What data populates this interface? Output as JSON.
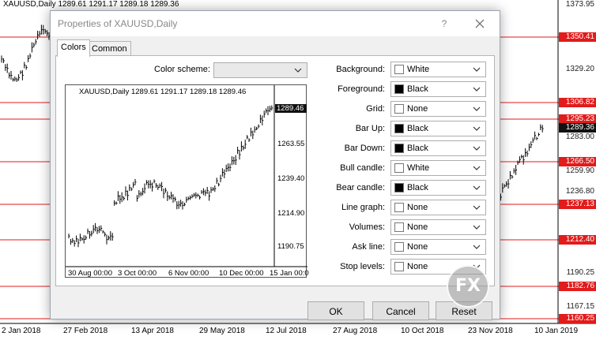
{
  "chart": {
    "title": "XAUUSD,Daily  1289.61 1291.17 1289.18 1289.36",
    "price_labels": [
      {
        "text": "1373.95",
        "style": "plain"
      },
      {
        "text": "1350.41",
        "style": "red"
      },
      {
        "text": "1329.20",
        "style": "plain"
      },
      {
        "text": "1306.82",
        "style": "red"
      },
      {
        "text": "1295.23",
        "style": "red"
      },
      {
        "text": "1289.36",
        "style": "dark"
      },
      {
        "text": "1283.00",
        "style": "plain"
      },
      {
        "text": "1266.50",
        "style": "red"
      },
      {
        "text": "1259.90",
        "style": "plain"
      },
      {
        "text": "1237.13",
        "style": "red"
      },
      {
        "text": "1236.80",
        "style": "plain"
      },
      {
        "text": "1212.40",
        "style": "red"
      },
      {
        "text": "1190.25",
        "style": "plain"
      },
      {
        "text": "1182.76",
        "style": "red"
      },
      {
        "text": "1167.15",
        "style": "plain"
      },
      {
        "text": "1160.25",
        "style": "red"
      }
    ],
    "dates": [
      "2 Jan 2018",
      "27 Feb 2018",
      "13 Apr 2018",
      "29 May 2018",
      "12 Jul 2018",
      "27 Aug 2018",
      "10 Oct 2018",
      "23 Nov 2018",
      "10 Jan 2019"
    ],
    "colors": {
      "level_line": "#e21b1b",
      "price_tag_bg": "#e21b1b",
      "bars": "#000000"
    }
  },
  "dialog": {
    "title": "Properties of XAUUSD,Daily",
    "help_label": "?",
    "close_icon": "close-icon",
    "tabs": [
      {
        "label": "Colors",
        "active": true
      },
      {
        "label": "Common",
        "active": false
      }
    ],
    "color_scheme": {
      "label": "Color scheme:",
      "value": ""
    },
    "preview": {
      "title": "XAUUSD,Daily  1289.61 1291.17 1289.18 1289.46",
      "last_price": "1289.46",
      "price_ticks": [
        "1263.55",
        "1239.40",
        "1214.90",
        "1190.75"
      ],
      "dates": [
        "30 Aug 00:00",
        "3 Oct 00:00",
        "6 Nov 00:00",
        "10 Dec 00:00",
        "15 Jan 00:0"
      ]
    },
    "settings": [
      {
        "label": "Background:",
        "value": "White",
        "color": "#ffffff"
      },
      {
        "label": "Foreground:",
        "value": "Black",
        "color": "#000000"
      },
      {
        "label": "Grid:",
        "value": "None",
        "color": "#ffffff"
      },
      {
        "label": "Bar Up:",
        "value": "Black",
        "color": "#000000"
      },
      {
        "label": "Bar Down:",
        "value": "Black",
        "color": "#000000"
      },
      {
        "label": "Bull candle:",
        "value": "White",
        "color": "#ffffff"
      },
      {
        "label": "Bear candle:",
        "value": "Black",
        "color": "#000000"
      },
      {
        "label": "Line graph:",
        "value": "None",
        "color": "#ffffff"
      },
      {
        "label": "Volumes:",
        "value": "None",
        "color": "#ffffff"
      },
      {
        "label": "Ask line:",
        "value": "None",
        "color": "#ffffff"
      },
      {
        "label": "Stop levels:",
        "value": "None",
        "color": "#ffffff"
      }
    ],
    "buttons": {
      "ok": "OK",
      "cancel": "Cancel",
      "reset": "Reset"
    }
  },
  "watermark": {
    "text": "FX"
  }
}
